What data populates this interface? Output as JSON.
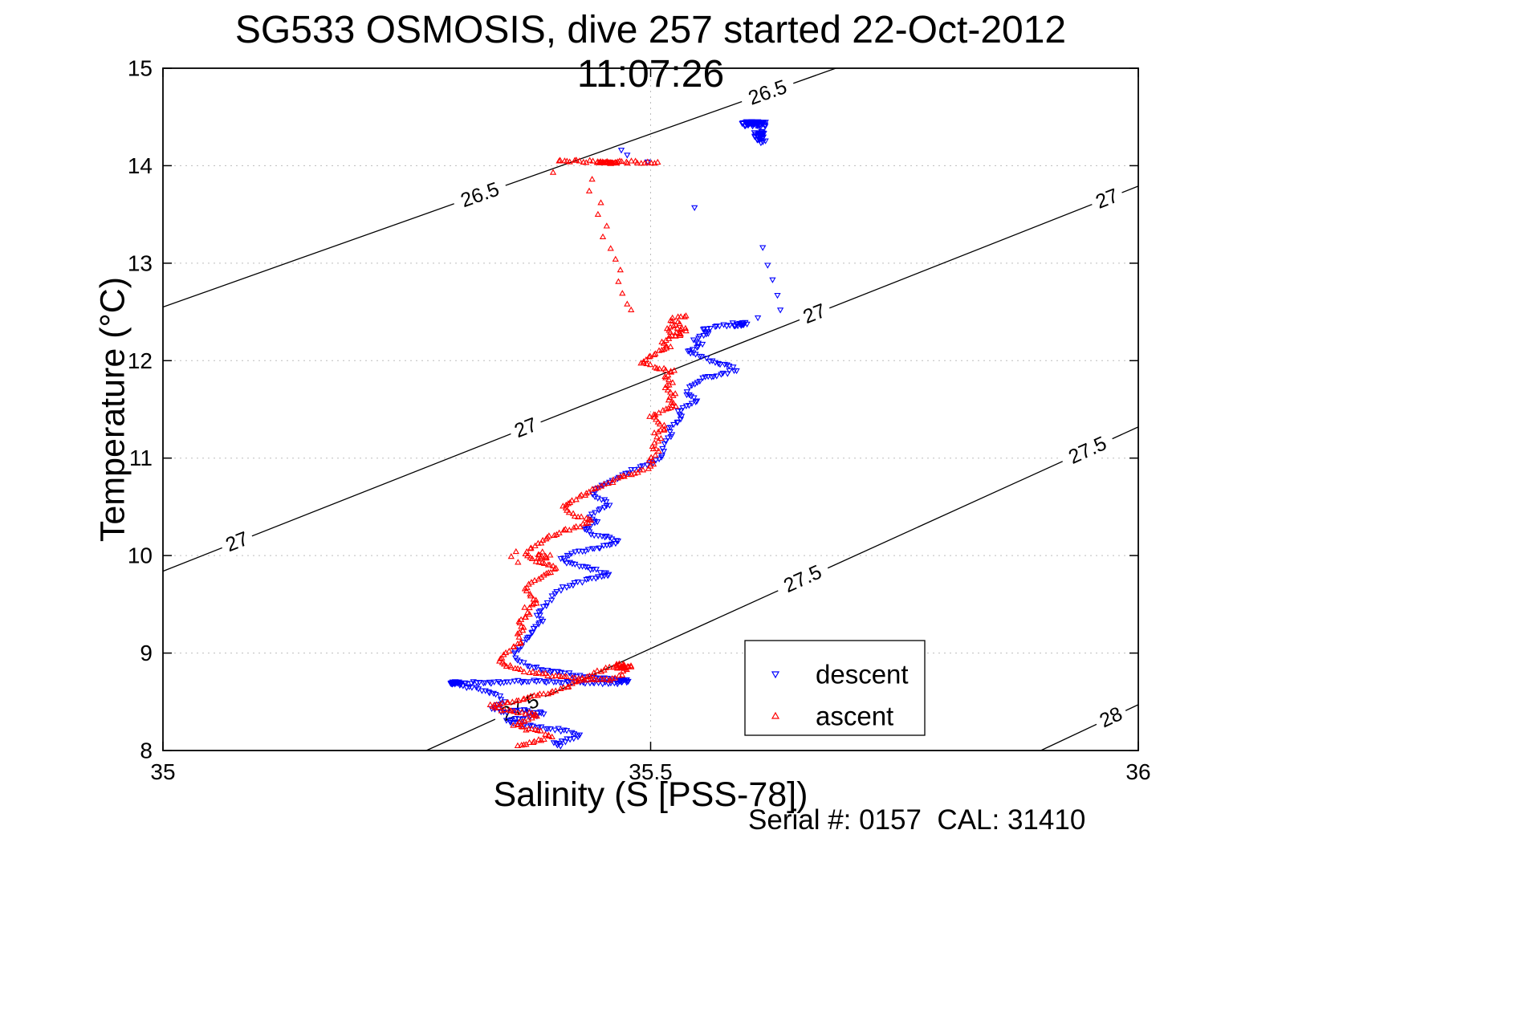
{
  "chart_data": {
    "type": "scatter",
    "title": "SG533 OSMOSIS, dive 257 started 22-Oct-2012 11:07:26",
    "xlabel": "Salinity (S [PSS-78])",
    "ylabel": "Temperature (°C)",
    "annotation": "Serial #: 0157  CAL: 31410",
    "xlim": [
      35,
      36
    ],
    "ylim": [
      8,
      15
    ],
    "xticks": [
      35,
      35.5,
      36
    ],
    "xtick_labels": [
      "35",
      "35.5",
      "36"
    ],
    "yticks": [
      8,
      9,
      10,
      11,
      12,
      13,
      14,
      15
    ],
    "grid": {
      "x": [
        35.5
      ],
      "y": [
        9,
        10,
        11,
        12,
        13,
        14
      ]
    },
    "isopycnals": [
      {
        "value": "26.5",
        "line": [
          [
            35.0,
            12.55
          ],
          [
            35.69,
            15.0
          ]
        ],
        "labels": [
          {
            "s": 35.325,
            "t": 13.7
          },
          {
            "s": 35.62,
            "t": 14.75
          }
        ]
      },
      {
        "value": "27",
        "line": [
          [
            35.0,
            9.84
          ],
          [
            36.0,
            13.79
          ]
        ],
        "labels": [
          {
            "s": 35.076,
            "t": 10.14
          },
          {
            "s": 35.372,
            "t": 11.31
          },
          {
            "s": 35.668,
            "t": 12.48
          },
          {
            "s": 35.968,
            "t": 13.66
          }
        ]
      },
      {
        "value": "27.5",
        "line": [
          [
            35.27,
            8.0
          ],
          [
            36.0,
            11.32
          ]
        ],
        "labels": [
          {
            "s": 35.366,
            "t": 8.44
          },
          {
            "s": 35.656,
            "t": 9.76
          },
          {
            "s": 35.948,
            "t": 11.08
          }
        ]
      },
      {
        "value": "28",
        "line": [
          [
            35.9,
            8.0
          ],
          [
            36.0,
            8.47
          ]
        ],
        "labels": [
          {
            "s": 35.972,
            "t": 8.34
          }
        ]
      }
    ],
    "series": [
      {
        "name": "descent",
        "marker": "v",
        "color": "#0000ff",
        "paths": [
          [
            [
              35.598,
              12.4
            ],
            [
              35.575,
              12.36
            ],
            [
              35.553,
              12.32
            ],
            [
              35.56,
              12.27
            ],
            [
              35.545,
              12.22
            ],
            [
              35.552,
              12.16
            ],
            [
              35.538,
              12.1
            ],
            [
              35.55,
              12.05
            ],
            [
              35.56,
              12.0
            ],
            [
              35.578,
              11.96
            ],
            [
              35.588,
              11.91
            ],
            [
              35.572,
              11.86
            ],
            [
              35.556,
              11.83
            ],
            [
              35.548,
              11.78
            ],
            [
              35.54,
              11.72
            ],
            [
              35.536,
              11.66
            ],
            [
              35.548,
              11.6
            ],
            [
              35.536,
              11.54
            ],
            [
              35.528,
              11.48
            ],
            [
              35.533,
              11.42
            ],
            [
              35.527,
              11.36
            ],
            [
              35.518,
              11.3
            ],
            [
              35.523,
              11.24
            ],
            [
              35.515,
              11.18
            ],
            [
              35.512,
              11.11
            ],
            [
              35.513,
              11.04
            ],
            [
              35.505,
              10.97
            ],
            [
              35.49,
              10.91
            ],
            [
              35.477,
              10.86
            ],
            [
              35.468,
              10.8
            ],
            [
              35.455,
              10.74
            ],
            [
              35.444,
              10.68
            ],
            [
              35.44,
              10.62
            ],
            [
              35.452,
              10.57
            ],
            [
              35.458,
              10.52
            ],
            [
              35.446,
              10.46
            ],
            [
              35.438,
              10.4
            ],
            [
              35.445,
              10.34
            ],
            [
              35.432,
              10.28
            ],
            [
              35.44,
              10.23
            ],
            [
              35.455,
              10.19
            ],
            [
              35.467,
              10.15
            ],
            [
              35.455,
              10.1
            ],
            [
              35.437,
              10.06
            ],
            [
              35.42,
              10.02
            ],
            [
              35.408,
              9.97
            ],
            [
              35.417,
              9.92
            ],
            [
              35.433,
              9.88
            ],
            [
              35.448,
              9.84
            ],
            [
              35.458,
              9.8
            ],
            [
              35.44,
              9.76
            ],
            [
              35.423,
              9.72
            ],
            [
              35.41,
              9.67
            ],
            [
              35.402,
              9.61
            ],
            [
              35.398,
              9.54
            ],
            [
              35.39,
              9.47
            ],
            [
              35.384,
              9.4
            ],
            [
              35.39,
              9.34
            ],
            [
              35.382,
              9.27
            ],
            [
              35.377,
              9.2
            ],
            [
              35.372,
              9.13
            ],
            [
              35.366,
              9.06
            ],
            [
              35.36,
              8.99
            ],
            [
              35.364,
              8.92
            ],
            [
              35.377,
              8.86
            ],
            [
              35.4,
              8.81
            ],
            [
              35.425,
              8.77
            ],
            [
              35.45,
              8.74
            ],
            [
              35.468,
              8.72
            ],
            [
              35.478,
              8.7
            ],
            [
              35.46,
              8.69
            ],
            [
              35.43,
              8.7
            ],
            [
              35.4,
              8.71
            ],
            [
              35.37,
              8.71
            ],
            [
              35.34,
              8.7
            ],
            [
              35.315,
              8.7
            ],
            [
              35.298,
              8.69
            ],
            [
              35.305,
              8.67
            ],
            [
              35.33,
              8.62
            ],
            [
              35.345,
              8.56
            ],
            [
              35.35,
              8.5
            ],
            [
              35.338,
              8.44
            ],
            [
              35.35,
              8.4
            ],
            [
              35.373,
              8.41
            ],
            [
              35.39,
              8.38
            ],
            [
              35.368,
              8.33
            ],
            [
              35.352,
              8.3
            ],
            [
              35.37,
              8.26
            ],
            [
              35.395,
              8.23
            ],
            [
              35.415,
              8.2
            ],
            [
              35.428,
              8.16
            ],
            [
              35.415,
              8.11
            ],
            [
              35.4,
              8.07
            ],
            [
              35.41,
              8.04
            ]
          ]
        ],
        "clusters": [
          {
            "s": 35.606,
            "t": 14.43,
            "sx": 0.016,
            "sy": 0.03,
            "n": 60
          },
          {
            "s": 35.612,
            "t": 14.3,
            "sx": 0.007,
            "sy": 0.08,
            "n": 35
          },
          {
            "s": 35.59,
            "t": 12.37,
            "sx": 0.012,
            "sy": 0.02,
            "n": 12
          },
          {
            "s": 35.3,
            "t": 8.695,
            "sx": 0.009,
            "sy": 0.02,
            "n": 18
          },
          {
            "s": 35.472,
            "t": 8.72,
            "sx": 0.008,
            "sy": 0.022,
            "n": 12
          }
        ],
        "points": [
          [
            35.497,
            14.04
          ],
          [
            35.47,
            14.16
          ],
          [
            35.476,
            14.11
          ],
          [
            35.545,
            13.57
          ],
          [
            35.615,
            13.16
          ],
          [
            35.62,
            12.98
          ],
          [
            35.625,
            12.83
          ],
          [
            35.63,
            12.67
          ],
          [
            35.633,
            12.52
          ],
          [
            35.61,
            12.44
          ]
        ]
      },
      {
        "name": "ascent",
        "marker": "^",
        "color": "#ff0000",
        "paths": [
          [
            [
              35.405,
              14.05
            ],
            [
              35.448,
              14.04
            ],
            [
              35.51,
              14.03
            ]
          ],
          [
            [
              35.537,
              12.47
            ],
            [
              35.52,
              12.42
            ],
            [
              35.53,
              12.37
            ],
            [
              35.517,
              12.32
            ],
            [
              35.523,
              12.26
            ],
            [
              35.512,
              12.2
            ],
            [
              35.52,
              12.14
            ],
            [
              35.506,
              12.08
            ],
            [
              35.495,
              12.02
            ],
            [
              35.49,
              11.97
            ],
            [
              35.507,
              11.93
            ],
            [
              35.523,
              11.89
            ],
            [
              35.514,
              11.84
            ],
            [
              35.522,
              11.78
            ],
            [
              35.515,
              11.72
            ],
            [
              35.524,
              11.66
            ],
            [
              35.518,
              11.6
            ],
            [
              35.526,
              11.54
            ],
            [
              35.512,
              11.48
            ],
            [
              35.5,
              11.43
            ],
            [
              35.508,
              11.37
            ],
            [
              35.515,
              11.31
            ],
            [
              35.505,
              11.25
            ],
            [
              35.51,
              11.19
            ],
            [
              35.502,
              11.13
            ],
            [
              35.507,
              11.06
            ],
            [
              35.498,
              10.99
            ],
            [
              35.503,
              10.93
            ],
            [
              35.49,
              10.87
            ],
            [
              35.474,
              10.82
            ],
            [
              35.46,
              10.76
            ],
            [
              35.447,
              10.7
            ],
            [
              35.435,
              10.64
            ],
            [
              35.42,
              10.57
            ],
            [
              35.41,
              10.5
            ],
            [
              35.417,
              10.44
            ],
            [
              35.43,
              10.39
            ],
            [
              35.44,
              10.35
            ],
            [
              35.427,
              10.3
            ],
            [
              35.41,
              10.25
            ],
            [
              35.397,
              10.2
            ],
            [
              35.387,
              10.14
            ],
            [
              35.378,
              10.08
            ],
            [
              35.372,
              10.02
            ],
            [
              35.378,
              9.96
            ],
            [
              35.392,
              9.92
            ],
            [
              35.403,
              9.88
            ],
            [
              35.398,
              9.83
            ],
            [
              35.387,
              9.78
            ],
            [
              35.378,
              9.72
            ],
            [
              35.372,
              9.65
            ],
            [
              35.378,
              9.58
            ],
            [
              35.384,
              9.52
            ],
            [
              35.372,
              9.46
            ],
            [
              35.376,
              9.39
            ],
            [
              35.364,
              9.32
            ],
            [
              35.37,
              9.26
            ],
            [
              35.364,
              9.19
            ],
            [
              35.368,
              9.12
            ],
            [
              35.358,
              9.05
            ],
            [
              35.35,
              8.98
            ],
            [
              35.344,
              8.91
            ],
            [
              35.358,
              8.85
            ],
            [
              35.378,
              8.8
            ],
            [
              35.405,
              8.76
            ],
            [
              35.432,
              8.73
            ],
            [
              35.455,
              8.72
            ],
            [
              35.468,
              8.76
            ],
            [
              35.475,
              8.83
            ],
            [
              35.468,
              8.88
            ],
            [
              35.455,
              8.84
            ],
            [
              35.44,
              8.78
            ],
            [
              35.428,
              8.72
            ],
            [
              35.417,
              8.66
            ],
            [
              35.4,
              8.6
            ],
            [
              35.378,
              8.55
            ],
            [
              35.355,
              8.5
            ],
            [
              35.335,
              8.46
            ],
            [
              35.348,
              8.42
            ],
            [
              35.368,
              8.39
            ],
            [
              35.384,
              8.36
            ],
            [
              35.372,
              8.31
            ],
            [
              35.36,
              8.26
            ],
            [
              35.373,
              8.22
            ],
            [
              35.388,
              8.19
            ],
            [
              35.398,
              8.15
            ],
            [
              35.385,
              8.1
            ],
            [
              35.37,
              8.06
            ],
            [
              35.36,
              8.03
            ]
          ]
        ],
        "clusters": [
          {
            "s": 35.455,
            "t": 14.03,
            "sx": 0.013,
            "sy": 0.013,
            "n": 28
          },
          {
            "s": 35.472,
            "t": 8.86,
            "sx": 0.009,
            "sy": 0.03,
            "n": 22
          },
          {
            "s": 35.388,
            "t": 10.0,
            "sx": 0.013,
            "sy": 0.055,
            "n": 10
          },
          {
            "s": 35.53,
            "t": 12.3,
            "sx": 0.01,
            "sy": 0.055,
            "n": 12
          }
        ],
        "points": [
          [
            35.4,
            13.93
          ],
          [
            35.44,
            13.86
          ],
          [
            35.437,
            13.74
          ],
          [
            35.449,
            13.62
          ],
          [
            35.446,
            13.5
          ],
          [
            35.455,
            13.38
          ],
          [
            35.451,
            13.27
          ],
          [
            35.459,
            13.15
          ],
          [
            35.464,
            13.04
          ],
          [
            35.469,
            12.93
          ],
          [
            35.467,
            12.81
          ],
          [
            35.471,
            12.69
          ],
          [
            35.476,
            12.58
          ],
          [
            35.48,
            12.52
          ],
          [
            35.362,
            10.04
          ],
          [
            35.357,
            9.99
          ],
          [
            35.364,
            9.93
          ]
        ]
      }
    ],
    "legend": {
      "entries": [
        {
          "label": "descent"
        },
        {
          "label": "ascent"
        }
      ]
    }
  }
}
